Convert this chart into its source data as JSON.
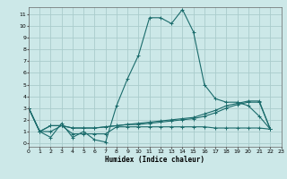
{
  "xlabel": "Humidex (Indice chaleur)",
  "background_color": "#cce8e8",
  "grid_color": "#aacccc",
  "line_color": "#1a6b6b",
  "xlim": [
    0,
    23
  ],
  "ylim": [
    -0.3,
    11.6
  ],
  "xticks": [
    0,
    1,
    2,
    3,
    4,
    5,
    6,
    7,
    8,
    9,
    10,
    11,
    12,
    13,
    14,
    15,
    16,
    17,
    18,
    19,
    20,
    21,
    22,
    23
  ],
  "yticks": [
    0,
    1,
    2,
    3,
    4,
    5,
    6,
    7,
    8,
    9,
    10,
    11
  ],
  "series": [
    {
      "x": [
        0,
        1,
        2,
        3,
        4,
        5,
        6,
        7,
        8,
        9,
        10,
        11,
        12,
        13,
        14,
        15,
        16,
        17,
        18,
        19,
        20,
        21,
        22
      ],
      "y": [
        3.0,
        1.0,
        0.5,
        1.7,
        0.5,
        1.0,
        0.3,
        0.1,
        3.2,
        5.5,
        7.5,
        10.7,
        10.7,
        10.2,
        11.4,
        9.5,
        5.0,
        3.8,
        3.5,
        3.5,
        3.2,
        2.3,
        1.2
      ]
    },
    {
      "x": [
        0,
        1,
        2,
        3,
        4,
        5,
        6,
        7,
        8,
        9,
        10,
        11,
        12,
        13,
        14,
        15,
        16,
        17,
        18,
        19,
        20,
        21,
        22
      ],
      "y": [
        3.0,
        1.0,
        1.0,
        1.5,
        0.8,
        0.8,
        0.8,
        0.8,
        1.4,
        1.4,
        1.4,
        1.4,
        1.4,
        1.4,
        1.4,
        1.4,
        1.4,
        1.3,
        1.3,
        1.3,
        1.3,
        1.3,
        1.2
      ]
    },
    {
      "x": [
        0,
        1,
        2,
        3,
        4,
        5,
        6,
        7,
        8,
        9,
        10,
        11,
        12,
        13,
        14,
        15,
        16,
        17,
        18,
        19,
        20,
        21,
        22
      ],
      "y": [
        3.0,
        1.0,
        1.5,
        1.5,
        1.3,
        1.3,
        1.3,
        1.4,
        1.5,
        1.6,
        1.7,
        1.8,
        1.9,
        2.0,
        2.1,
        2.2,
        2.5,
        2.8,
        3.2,
        3.4,
        3.6,
        3.6,
        1.2
      ]
    },
    {
      "x": [
        0,
        1,
        2,
        3,
        4,
        5,
        6,
        7,
        8,
        9,
        10,
        11,
        12,
        13,
        14,
        15,
        16,
        17,
        18,
        19,
        20,
        21,
        22
      ],
      "y": [
        3.0,
        1.0,
        1.5,
        1.5,
        1.3,
        1.3,
        1.3,
        1.4,
        1.5,
        1.6,
        1.6,
        1.7,
        1.8,
        1.9,
        2.0,
        2.1,
        2.3,
        2.6,
        3.0,
        3.3,
        3.5,
        3.5,
        1.2
      ]
    }
  ]
}
